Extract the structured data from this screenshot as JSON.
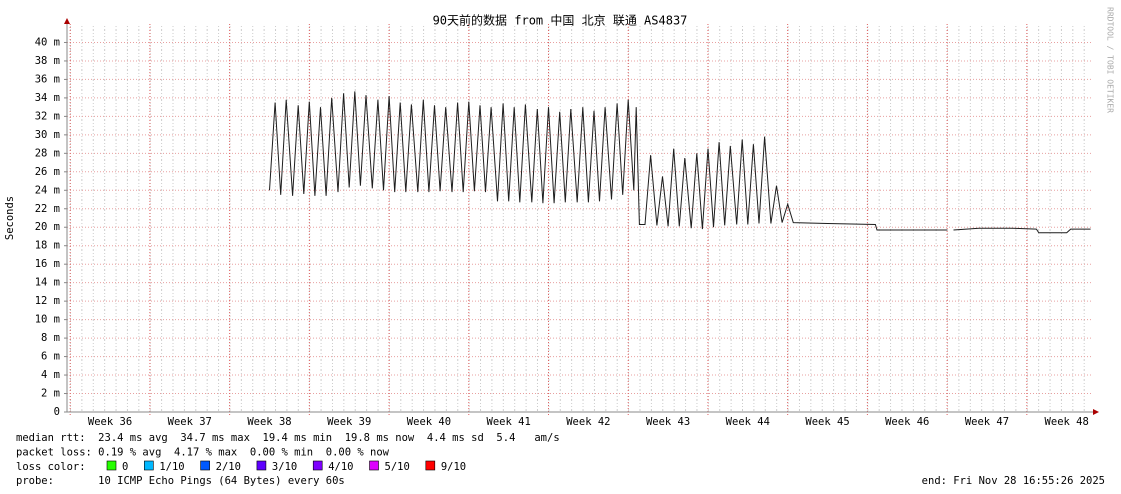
{
  "chart_data": {
    "type": "line",
    "title": "90天前的数据 from 中国 北京 联通 AS4837",
    "y_label": "Seconds",
    "watermark": "RRDTOOL / TOBI OETIKER",
    "xlim": [
      35.46,
      48.33
    ],
    "ylim": [
      0,
      42
    ],
    "xticks": [
      {
        "value": 36,
        "label": "Week 36"
      },
      {
        "value": 37,
        "label": "Week 37"
      },
      {
        "value": 38,
        "label": "Week 38"
      },
      {
        "value": 39,
        "label": "Week 39"
      },
      {
        "value": 40,
        "label": "Week 40"
      },
      {
        "value": 41,
        "label": "Week 41"
      },
      {
        "value": 42,
        "label": "Week 42"
      },
      {
        "value": 43,
        "label": "Week 43"
      },
      {
        "value": 44,
        "label": "Week 44"
      },
      {
        "value": 45,
        "label": "Week 45"
      },
      {
        "value": 46,
        "label": "Week 46"
      },
      {
        "value": 47,
        "label": "Week 47"
      },
      {
        "value": 48,
        "label": "Week 48"
      }
    ],
    "yticks": [
      0,
      {
        "value": 2,
        "label": "2 m"
      },
      {
        "value": 4,
        "label": "4 m"
      },
      {
        "value": 6,
        "label": "6 m"
      },
      {
        "value": 8,
        "label": "8 m"
      },
      {
        "value": 10,
        "label": "10 m"
      },
      {
        "value": 12,
        "label": "12 m"
      },
      {
        "value": 14,
        "label": "14 m"
      },
      {
        "value": 16,
        "label": "16 m"
      },
      {
        "value": 18,
        "label": "18 m"
      },
      {
        "value": 20,
        "label": "20 m"
      },
      {
        "value": 22,
        "label": "22 m"
      },
      {
        "value": 24,
        "label": "24 m"
      },
      {
        "value": 26,
        "label": "26 m"
      },
      {
        "value": 28,
        "label": "28 m"
      },
      {
        "value": 30,
        "label": "30 m"
      },
      {
        "value": 32,
        "label": "32 m"
      },
      {
        "value": 34,
        "label": "34 m"
      },
      {
        "value": 36,
        "label": "36 m"
      },
      {
        "value": 38,
        "label": "38 m"
      },
      {
        "value": 40,
        "label": "40 m"
      }
    ],
    "grid": true,
    "x": [
      38.0,
      38.07,
      38.14,
      38.21,
      38.29,
      38.36,
      38.43,
      38.5,
      38.57,
      38.64,
      38.71,
      38.78,
      38.86,
      38.93,
      39.0,
      39.07,
      39.14,
      39.21,
      39.29,
      39.36,
      39.43,
      39.5,
      39.57,
      39.64,
      39.71,
      39.78,
      39.86,
      39.93,
      40.0,
      40.07,
      40.14,
      40.21,
      40.29,
      40.36,
      40.43,
      40.5,
      40.57,
      40.64,
      40.71,
      40.78,
      40.86,
      40.93,
      41.0,
      41.07,
      41.14,
      41.21,
      41.29,
      41.36,
      41.43,
      41.5,
      41.57,
      41.64,
      41.71,
      41.78,
      41.86,
      41.93,
      42.0,
      42.07,
      42.14,
      42.21,
      42.29,
      42.36,
      42.43,
      42.5,
      42.57,
      42.6,
      42.64,
      42.71,
      42.78,
      42.86,
      42.93,
      43.0,
      43.07,
      43.14,
      43.21,
      43.29,
      43.36,
      43.43,
      43.5,
      43.57,
      43.64,
      43.71,
      43.78,
      43.86,
      43.93,
      44.0,
      44.07,
      44.14,
      44.21,
      44.29,
      44.36,
      44.43,
      44.5,
      44.57,
      45.0,
      45.6,
      45.62,
      46.5,
      46.54,
      46.58,
      46.9,
      47.3,
      47.62,
      47.65,
      48.0,
      48.05,
      48.3
    ],
    "series": [
      {
        "name": "median rtt",
        "color": "#1e1e1e",
        "values": [
          24.0,
          33.5,
          23.5,
          33.8,
          23.4,
          33.2,
          23.6,
          33.6,
          23.4,
          33.0,
          23.4,
          34.0,
          23.8,
          34.5,
          24.3,
          34.7,
          24.5,
          34.3,
          24.2,
          33.8,
          24.0,
          34.2,
          23.8,
          33.5,
          23.8,
          33.3,
          23.8,
          33.8,
          23.8,
          33.2,
          23.9,
          33.0,
          23.8,
          33.5,
          23.8,
          33.6,
          23.9,
          33.2,
          23.8,
          33.0,
          22.8,
          33.4,
          22.8,
          33.0,
          22.7,
          33.3,
          22.7,
          32.8,
          22.6,
          33.0,
          22.6,
          32.5,
          22.7,
          32.8,
          22.7,
          33.0,
          22.7,
          32.6,
          22.8,
          33.0,
          23.0,
          33.4,
          23.5,
          33.8,
          24.0,
          33.0,
          20.3,
          20.3,
          27.8,
          20.2,
          25.5,
          20.1,
          28.5,
          20.1,
          27.5,
          19.9,
          28.0,
          19.8,
          28.5,
          20.0,
          29.2,
          20.2,
          28.8,
          20.3,
          29.5,
          20.3,
          29.0,
          20.4,
          29.8,
          20.4,
          24.5,
          20.5,
          22.5,
          20.5,
          20.4,
          20.3,
          19.7,
          19.7,
          null,
          19.7,
          19.9,
          19.9,
          19.8,
          19.4,
          19.4,
          19.8,
          19.8
        ]
      }
    ],
    "stats_lines": [
      "median rtt:  23.4 ms avg  34.7 ms max  19.4 ms min  19.8 ms now  4.4 ms sd  5.4   am/s",
      "packet loss: 0.19 % avg  4.17 % max  0.00 % min  0.00 % now"
    ],
    "loss_label": "loss color:",
    "loss_colors": [
      {
        "name": "0",
        "color": "#26ff00"
      },
      {
        "name": "1/10",
        "color": "#00b8ff"
      },
      {
        "name": "2/10",
        "color": "#0059ff"
      },
      {
        "name": "3/10",
        "color": "#5e00ff"
      },
      {
        "name": "4/10",
        "color": "#7e00ff"
      },
      {
        "name": "5/10",
        "color": "#dd00ff"
      },
      {
        "name": "9/10",
        "color": "#ff0000"
      }
    ],
    "probe": "probe:       10 ICMP Echo Pings (64 Bytes) every 60s",
    "end": "end: Fri Nov 28 16:55:26 2025"
  }
}
